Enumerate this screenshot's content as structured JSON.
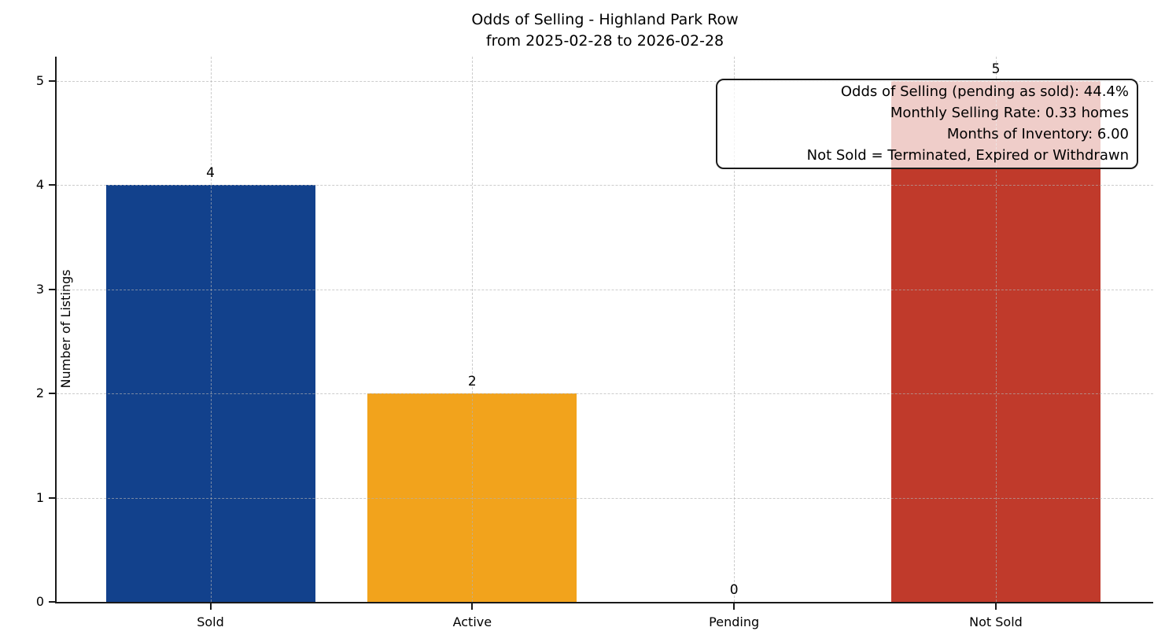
{
  "chart_data": {
    "type": "bar",
    "title": "Odds of Selling - Highland Park Row",
    "subtitle": "from 2025-02-28 to 2026-02-28",
    "ylabel": "Number of Listings",
    "categories": [
      "Sold",
      "Active",
      "Pending",
      "Not Sold"
    ],
    "values": [
      4,
      2,
      0,
      5
    ],
    "value_labels": [
      "4",
      "2",
      "0",
      "5"
    ],
    "bar_colors": [
      "#12418c",
      "#f2a31c",
      null,
      "#c03a2b"
    ],
    "yticks": [
      0,
      1,
      2,
      3,
      4,
      5
    ],
    "ylim": [
      0,
      5.23
    ],
    "grid": {
      "style": "dashed",
      "axes": "both",
      "color": "#b0b0b0",
      "above_bars": true
    },
    "spine_color": "#1a1a1a",
    "text_color": "#000000",
    "background_color": "#ffffff",
    "annotation_box": {
      "text_align": "right",
      "lines": [
        "Odds of Selling (pending as sold): 44.4%",
        "Monthly Selling Rate: 0.33 homes",
        "Months of Inventory: 6.00",
        "Not Sold = Terminated, Expired or Withdrawn"
      ]
    }
  }
}
